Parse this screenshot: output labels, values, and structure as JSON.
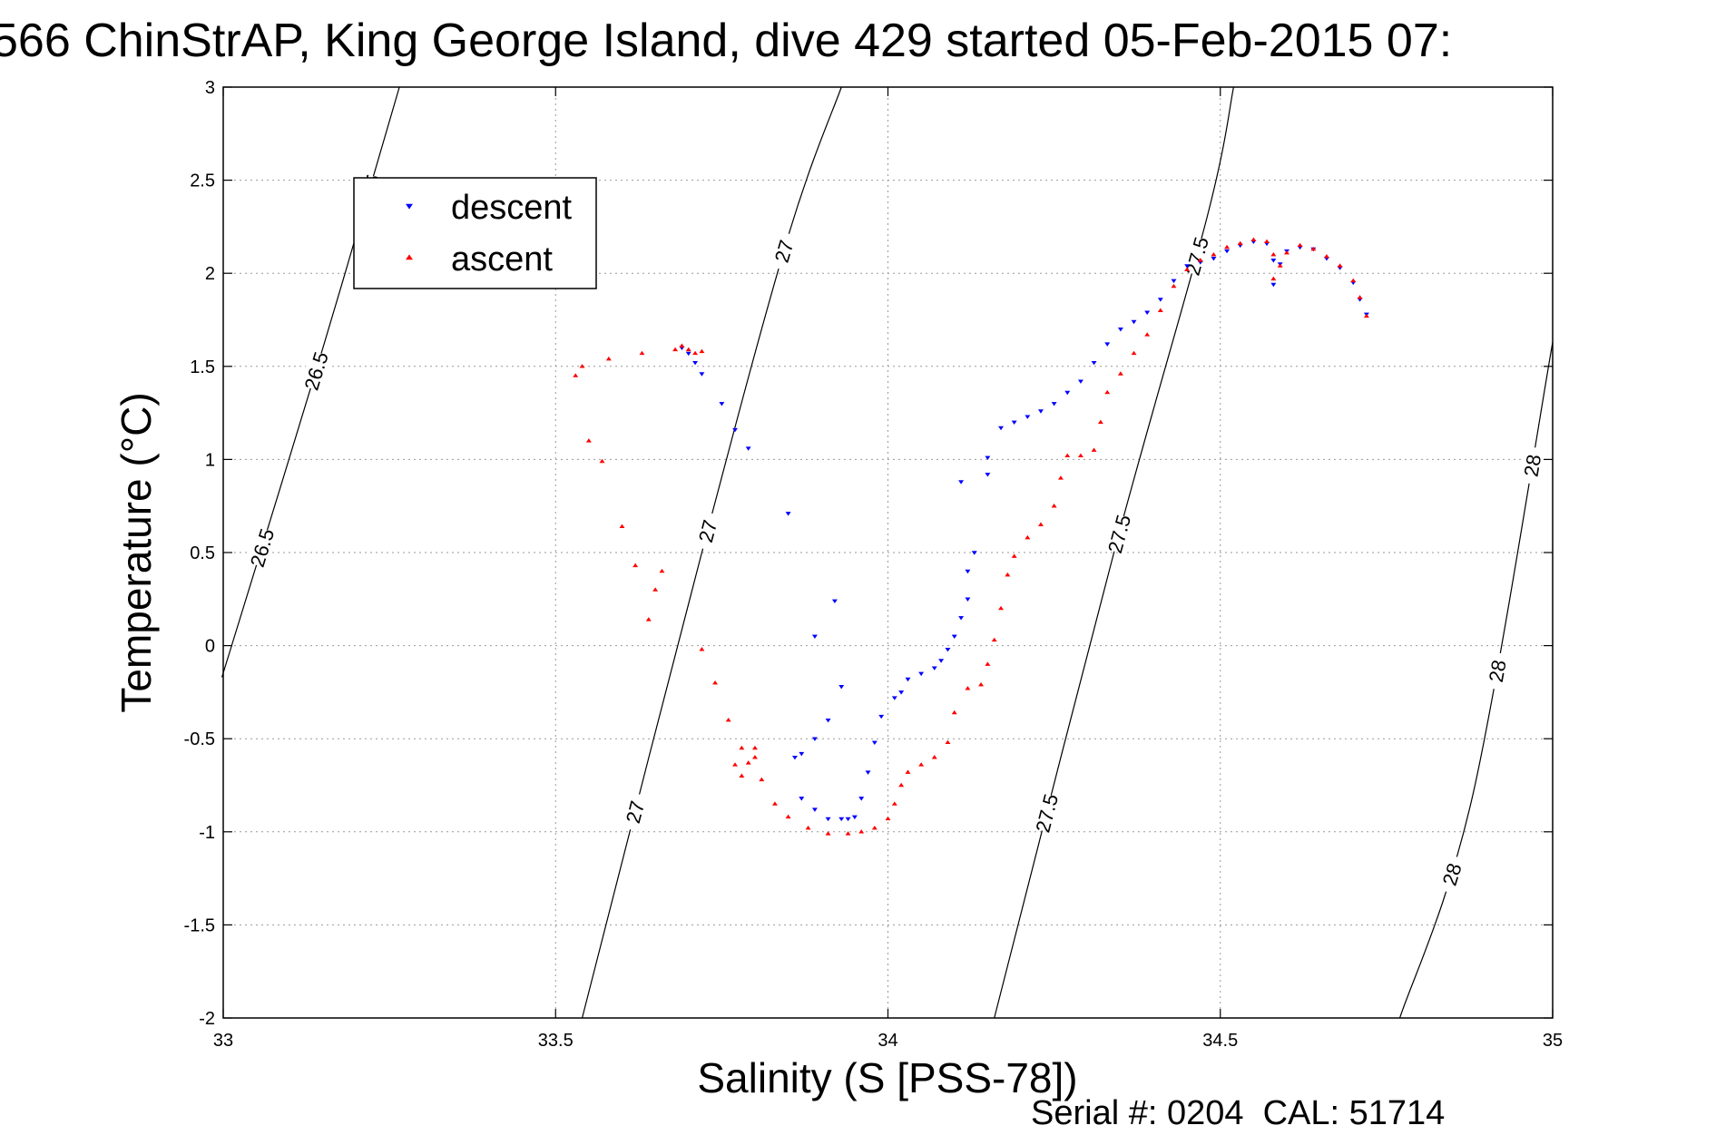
{
  "chart_data": {
    "type": "scatter",
    "title": "566 ChinStrAP, King George Island, dive 429 started 05-Feb-2015 07:",
    "xlabel": "Salinity (S [PSS-78])",
    "ylabel": "Temperature (°C)",
    "xlim": [
      33,
      35
    ],
    "ylim": [
      -2,
      3
    ],
    "x_ticks": [
      "33",
      "33.5",
      "34",
      "34.5",
      "35"
    ],
    "y_ticks": [
      "3",
      "2.5",
      "2",
      "1.5",
      "1",
      "0.5",
      "0",
      "-0.5",
      "-1",
      "-1.5",
      "-2"
    ],
    "grid": true,
    "legend_position": "top-left",
    "footer": "Serial #: 0204  CAL: 51714",
    "density_contours": [
      {
        "label": "26.5",
        "points": [
          [
            32.998,
            -0.17
          ],
          [
            33.15,
            1.6
          ],
          [
            33.265,
            3.0
          ]
        ]
      },
      {
        "label": "27",
        "points": [
          [
            33.54,
            -2.0
          ],
          [
            33.72,
            0.5
          ],
          [
            33.85,
            2.2
          ],
          [
            33.93,
            3.0
          ]
        ]
      },
      {
        "label": "27.5",
        "points": [
          [
            34.16,
            -2.0
          ],
          [
            34.34,
            0.5
          ],
          [
            34.48,
            2.3
          ],
          [
            34.52,
            3.0
          ]
        ]
      },
      {
        "label": "28",
        "points": [
          [
            34.77,
            -2.0
          ],
          [
            34.88,
            -0.8
          ],
          [
            35.0,
            1.63
          ]
        ]
      }
    ],
    "series": [
      {
        "name": "descent",
        "color": "#0000ff",
        "marker": "triangle-down",
        "points": [
          [
            34.72,
            1.78
          ],
          [
            34.71,
            1.86
          ],
          [
            34.7,
            1.95
          ],
          [
            34.68,
            2.03
          ],
          [
            34.66,
            2.08
          ],
          [
            34.64,
            2.13
          ],
          [
            34.62,
            2.14
          ],
          [
            34.6,
            2.12
          ],
          [
            34.59,
            2.05
          ],
          [
            34.58,
            1.94
          ],
          [
            34.58,
            2.07
          ],
          [
            34.57,
            2.16
          ],
          [
            34.55,
            2.17
          ],
          [
            34.53,
            2.15
          ],
          [
            34.51,
            2.12
          ],
          [
            34.49,
            2.08
          ],
          [
            34.47,
            2.06
          ],
          [
            34.45,
            2.04
          ],
          [
            34.43,
            1.96
          ],
          [
            34.41,
            1.86
          ],
          [
            34.39,
            1.79
          ],
          [
            34.37,
            1.74
          ],
          [
            34.35,
            1.7
          ],
          [
            34.33,
            1.62
          ],
          [
            34.31,
            1.52
          ],
          [
            34.29,
            1.42
          ],
          [
            34.27,
            1.36
          ],
          [
            34.25,
            1.3
          ],
          [
            34.23,
            1.26
          ],
          [
            34.21,
            1.23
          ],
          [
            34.19,
            1.2
          ],
          [
            34.17,
            1.17
          ],
          [
            34.15,
            1.01
          ],
          [
            34.15,
            0.92
          ],
          [
            34.13,
            0.5
          ],
          [
            34.11,
            0.88
          ],
          [
            34.12,
            0.4
          ],
          [
            34.12,
            0.25
          ],
          [
            34.11,
            0.15
          ],
          [
            34.1,
            0.05
          ],
          [
            34.09,
            -0.02
          ],
          [
            34.08,
            -0.08
          ],
          [
            34.07,
            -0.12
          ],
          [
            34.05,
            -0.15
          ],
          [
            34.03,
            -0.18
          ],
          [
            34.02,
            -0.25
          ],
          [
            34.01,
            -0.28
          ],
          [
            33.99,
            -0.38
          ],
          [
            33.98,
            -0.52
          ],
          [
            33.97,
            -0.68
          ],
          [
            33.96,
            -0.82
          ],
          [
            33.95,
            -0.92
          ],
          [
            33.94,
            -0.93
          ],
          [
            33.93,
            -0.93
          ],
          [
            33.91,
            -0.93
          ],
          [
            33.89,
            -0.88
          ],
          [
            33.87,
            -0.82
          ],
          [
            33.86,
            -0.6
          ],
          [
            33.87,
            -0.58
          ],
          [
            33.89,
            -0.5
          ],
          [
            33.91,
            -0.4
          ],
          [
            33.93,
            -0.22
          ],
          [
            33.92,
            0.24
          ],
          [
            33.89,
            0.05
          ],
          [
            33.85,
            0.71
          ],
          [
            33.79,
            1.06
          ],
          [
            33.77,
            1.16
          ],
          [
            33.75,
            1.3
          ],
          [
            33.72,
            1.46
          ],
          [
            33.71,
            1.52
          ],
          [
            33.7,
            1.57
          ],
          [
            33.69,
            1.6
          ]
        ]
      },
      {
        "name": "ascent",
        "color": "#ff0000",
        "marker": "triangle-up",
        "points": [
          [
            34.72,
            1.77
          ],
          [
            34.71,
            1.87
          ],
          [
            34.7,
            1.96
          ],
          [
            34.68,
            2.04
          ],
          [
            34.66,
            2.09
          ],
          [
            34.64,
            2.13
          ],
          [
            34.62,
            2.15
          ],
          [
            34.6,
            2.11
          ],
          [
            34.59,
            2.04
          ],
          [
            34.58,
            1.97
          ],
          [
            34.58,
            2.1
          ],
          [
            34.57,
            2.17
          ],
          [
            34.55,
            2.18
          ],
          [
            34.53,
            2.16
          ],
          [
            34.51,
            2.14
          ],
          [
            34.49,
            2.1
          ],
          [
            34.47,
            2.07
          ],
          [
            34.45,
            2.02
          ],
          [
            34.43,
            1.93
          ],
          [
            34.41,
            1.8
          ],
          [
            34.39,
            1.67
          ],
          [
            34.37,
            1.57
          ],
          [
            34.35,
            1.46
          ],
          [
            34.33,
            1.36
          ],
          [
            34.32,
            1.2
          ],
          [
            34.31,
            1.05
          ],
          [
            34.29,
            1.02
          ],
          [
            34.27,
            1.02
          ],
          [
            34.26,
            0.9
          ],
          [
            34.25,
            0.75
          ],
          [
            34.23,
            0.65
          ],
          [
            34.21,
            0.58
          ],
          [
            34.19,
            0.48
          ],
          [
            34.18,
            0.38
          ],
          [
            34.17,
            0.2
          ],
          [
            34.16,
            0.03
          ],
          [
            34.15,
            -0.1
          ],
          [
            34.14,
            -0.21
          ],
          [
            34.12,
            -0.23
          ],
          [
            34.1,
            -0.36
          ],
          [
            34.09,
            -0.52
          ],
          [
            34.07,
            -0.6
          ],
          [
            34.05,
            -0.64
          ],
          [
            34.03,
            -0.68
          ],
          [
            34.02,
            -0.75
          ],
          [
            34.01,
            -0.85
          ],
          [
            34.0,
            -0.93
          ],
          [
            33.98,
            -0.98
          ],
          [
            33.96,
            -1.0
          ],
          [
            33.94,
            -1.01
          ],
          [
            33.91,
            -1.01
          ],
          [
            33.88,
            -0.98
          ],
          [
            33.85,
            -0.92
          ],
          [
            33.83,
            -0.85
          ],
          [
            33.81,
            -0.72
          ],
          [
            33.8,
            -0.6
          ],
          [
            33.8,
            -0.55
          ],
          [
            33.78,
            -0.55
          ],
          [
            33.79,
            -0.63
          ],
          [
            33.78,
            -0.7
          ],
          [
            33.77,
            -0.64
          ],
          [
            33.76,
            -0.4
          ],
          [
            33.74,
            -0.2
          ],
          [
            33.72,
            -0.02
          ],
          [
            33.66,
            0.4
          ],
          [
            33.65,
            0.3
          ],
          [
            33.64,
            0.14
          ],
          [
            33.62,
            0.43
          ],
          [
            33.6,
            0.64
          ],
          [
            33.57,
            0.99
          ],
          [
            33.55,
            1.1
          ],
          [
            33.53,
            1.45
          ],
          [
            33.54,
            1.5
          ],
          [
            33.58,
            1.54
          ],
          [
            33.63,
            1.57
          ],
          [
            33.68,
            1.59
          ],
          [
            33.69,
            1.61
          ],
          [
            33.7,
            1.59
          ],
          [
            33.71,
            1.57
          ],
          [
            33.72,
            1.58
          ]
        ]
      }
    ]
  }
}
